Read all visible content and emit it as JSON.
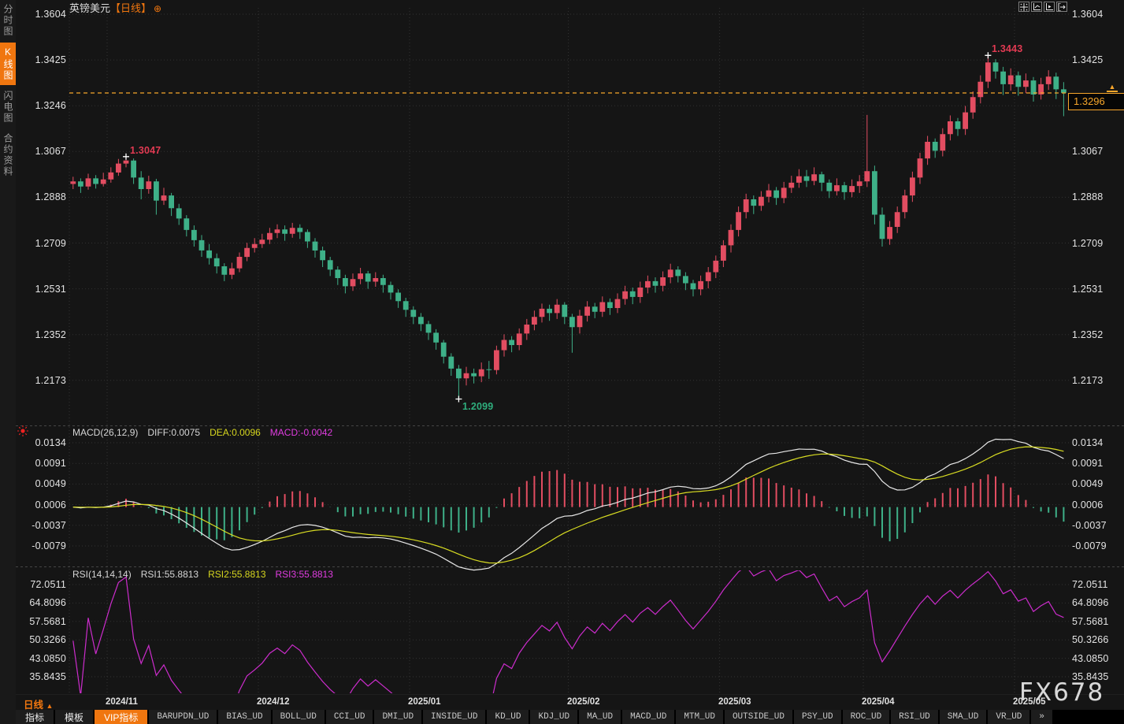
{
  "window": {
    "symbol": "英镑美元",
    "period_tag": "【日线】",
    "add_icon": "⊕"
  },
  "sidebar": {
    "tabs": [
      {
        "label": "分时图",
        "active": false
      },
      {
        "label": "K线图",
        "active": true
      },
      {
        "label": "闪电图",
        "active": false
      },
      {
        "label": "合约资料",
        "active": false
      }
    ]
  },
  "colors": {
    "up": "#e24d61",
    "down": "#3eb088",
    "accent": "#f0760f",
    "price_line": "#f7a62b",
    "diff_line": "#e8e8e8",
    "dea_line": "#d8dc22",
    "rsi_line": "#cc2ccc",
    "annotation_up": "#e13a52",
    "annotation_down": "#2fae7d",
    "grid": "#323232",
    "axis_text": "#e4e4e4"
  },
  "chart_data": {
    "type": "candlestick",
    "title": "英镑美元 日线 (GBP/USD Daily)",
    "y_axis_main": [
      "1.3604",
      "1.3425",
      "1.3246",
      "1.3067",
      "1.2888",
      "1.2709",
      "1.2531",
      "1.2352",
      "1.2173"
    ],
    "months": [
      {
        "label": "2024/11",
        "index": 5
      },
      {
        "label": "2024/12",
        "index": 25
      },
      {
        "label": "2025/01",
        "index": 45
      },
      {
        "label": "2025/02",
        "index": 66
      },
      {
        "label": "2025/03",
        "index": 86
      },
      {
        "label": "2025/04",
        "index": 105
      },
      {
        "label": "2025/05",
        "index": 125
      }
    ],
    "current_price": "1.3296",
    "annotations": [
      {
        "text": "1.3047",
        "candle_index": 7,
        "anchor": "high",
        "tone": "up"
      },
      {
        "text": "1.2099",
        "candle_index": 51,
        "anchor": "low",
        "tone": "down"
      },
      {
        "text": "1.3443",
        "candle_index": 121,
        "anchor": "high",
        "tone": "up"
      }
    ],
    "candles": [
      [
        1.294,
        1.2968,
        1.292,
        1.295
      ],
      [
        1.295,
        1.2962,
        1.2905,
        1.293
      ],
      [
        1.293,
        1.298,
        1.2918,
        1.2962
      ],
      [
        1.2962,
        1.2975,
        1.2922,
        1.294
      ],
      [
        1.294,
        1.2984,
        1.293,
        1.2958
      ],
      [
        1.2958,
        1.3005,
        1.2945,
        1.2985
      ],
      [
        1.2985,
        1.3038,
        1.2972,
        1.302
      ],
      [
        1.302,
        1.3047,
        1.3005,
        1.3032
      ],
      [
        1.3032,
        1.304,
        1.294,
        1.2965
      ],
      [
        1.2965,
        1.299,
        1.288,
        1.292
      ],
      [
        1.292,
        1.2972,
        1.2902,
        1.295
      ],
      [
        1.295,
        1.296,
        1.282,
        1.2875
      ],
      [
        1.2875,
        1.2925,
        1.2858,
        1.2895
      ],
      [
        1.2895,
        1.2905,
        1.2815,
        1.2845
      ],
      [
        1.2845,
        1.2862,
        1.278,
        1.2805
      ],
      [
        1.2805,
        1.2818,
        1.2735,
        1.276
      ],
      [
        1.276,
        1.2778,
        1.2695,
        1.272
      ],
      [
        1.272,
        1.274,
        1.2655,
        1.268
      ],
      [
        1.268,
        1.2705,
        1.2625,
        1.265
      ],
      [
        1.265,
        1.2668,
        1.259,
        1.2618
      ],
      [
        1.2618,
        1.263,
        1.256,
        1.2585
      ],
      [
        1.2585,
        1.2632,
        1.2568,
        1.261
      ],
      [
        1.261,
        1.2672,
        1.2595,
        1.2655
      ],
      [
        1.2655,
        1.271,
        1.2638,
        1.269
      ],
      [
        1.269,
        1.2728,
        1.2672,
        1.2705
      ],
      [
        1.2705,
        1.2745,
        1.269,
        1.2722
      ],
      [
        1.2722,
        1.2768,
        1.2705,
        1.2748
      ],
      [
        1.2748,
        1.2782,
        1.2728,
        1.2762
      ],
      [
        1.2762,
        1.2778,
        1.2718,
        1.2745
      ],
      [
        1.2745,
        1.2788,
        1.273,
        1.2768
      ],
      [
        1.2768,
        1.2782,
        1.2725,
        1.2752
      ],
      [
        1.2752,
        1.2762,
        1.269,
        1.2715
      ],
      [
        1.2715,
        1.2728,
        1.2652,
        1.268
      ],
      [
        1.268,
        1.2695,
        1.2615,
        1.2642
      ],
      [
        1.2642,
        1.2655,
        1.258,
        1.2605
      ],
      [
        1.2605,
        1.2618,
        1.2545,
        1.2572
      ],
      [
        1.2572,
        1.2585,
        1.2512,
        1.254
      ],
      [
        1.254,
        1.259,
        1.2522,
        1.2568
      ],
      [
        1.2568,
        1.2612,
        1.2548,
        1.259
      ],
      [
        1.259,
        1.26,
        1.253,
        1.2558
      ],
      [
        1.2558,
        1.2595,
        1.2538,
        1.2572
      ],
      [
        1.2572,
        1.2585,
        1.2515,
        1.2545
      ],
      [
        1.2545,
        1.2558,
        1.2488,
        1.2515
      ],
      [
        1.2515,
        1.2528,
        1.2455,
        1.2482
      ],
      [
        1.2482,
        1.2495,
        1.242,
        1.2448
      ],
      [
        1.2448,
        1.2462,
        1.2392,
        1.242
      ],
      [
        1.242,
        1.2435,
        1.2365,
        1.2392
      ],
      [
        1.2392,
        1.2405,
        1.233,
        1.2358
      ],
      [
        1.2358,
        1.2372,
        1.2292,
        1.232
      ],
      [
        1.232,
        1.233,
        1.2238,
        1.2265
      ],
      [
        1.2265,
        1.2278,
        1.219,
        1.2218
      ],
      [
        1.2218,
        1.2232,
        1.2099,
        1.218
      ],
      [
        1.218,
        1.2225,
        1.2152,
        1.22
      ],
      [
        1.22,
        1.2218,
        1.216,
        1.2188
      ],
      [
        1.2188,
        1.2242,
        1.2165,
        1.2215
      ],
      [
        1.2215,
        1.2248,
        1.2178,
        1.2212
      ],
      [
        1.2212,
        1.2308,
        1.2195,
        1.229
      ],
      [
        1.229,
        1.2352,
        1.2265,
        1.233
      ],
      [
        1.233,
        1.2345,
        1.2282,
        1.231
      ],
      [
        1.231,
        1.2375,
        1.229,
        1.2355
      ],
      [
        1.2355,
        1.2412,
        1.233,
        1.239
      ],
      [
        1.239,
        1.2445,
        1.2368,
        1.242
      ],
      [
        1.242,
        1.2472,
        1.2398,
        1.2452
      ],
      [
        1.2452,
        1.2468,
        1.2405,
        1.2435
      ],
      [
        1.2435,
        1.249,
        1.2412,
        1.2468
      ],
      [
        1.2468,
        1.2478,
        1.2392,
        1.242
      ],
      [
        1.242,
        1.2432,
        1.228,
        1.238
      ],
      [
        1.238,
        1.2448,
        1.2355,
        1.2425
      ],
      [
        1.2425,
        1.2482,
        1.2402,
        1.246
      ],
      [
        1.246,
        1.2475,
        1.2415,
        1.244
      ],
      [
        1.244,
        1.25,
        1.242,
        1.2478
      ],
      [
        1.2478,
        1.2492,
        1.2428,
        1.2455
      ],
      [
        1.2455,
        1.2512,
        1.2435,
        1.249
      ],
      [
        1.249,
        1.2542,
        1.2468,
        1.252
      ],
      [
        1.252,
        1.2535,
        1.247,
        1.2498
      ],
      [
        1.2498,
        1.2558,
        1.2475,
        1.2535
      ],
      [
        1.2535,
        1.2582,
        1.2512,
        1.256
      ],
      [
        1.256,
        1.2575,
        1.2515,
        1.2542
      ],
      [
        1.2542,
        1.2598,
        1.252,
        1.2575
      ],
      [
        1.2575,
        1.2628,
        1.2552,
        1.2605
      ],
      [
        1.2605,
        1.2618,
        1.2555,
        1.258
      ],
      [
        1.258,
        1.2595,
        1.2525,
        1.2552
      ],
      [
        1.2552,
        1.2565,
        1.25,
        1.2528
      ],
      [
        1.2528,
        1.2582,
        1.2505,
        1.256
      ],
      [
        1.256,
        1.2615,
        1.2532,
        1.2595
      ],
      [
        1.2595,
        1.266,
        1.2572,
        1.264
      ],
      [
        1.264,
        1.272,
        1.2615,
        1.27
      ],
      [
        1.27,
        1.2782,
        1.2672,
        1.276
      ],
      [
        1.276,
        1.2852,
        1.2735,
        1.283
      ],
      [
        1.283,
        1.2902,
        1.2805,
        1.288
      ],
      [
        1.288,
        1.2895,
        1.2822,
        1.2855
      ],
      [
        1.2855,
        1.2912,
        1.2835,
        1.289
      ],
      [
        1.289,
        1.294,
        1.2868,
        1.2915
      ],
      [
        1.2915,
        1.2928,
        1.2858,
        1.2885
      ],
      [
        1.2885,
        1.2948,
        1.2865,
        1.2925
      ],
      [
        1.2925,
        1.2972,
        1.2905,
        1.2945
      ],
      [
        1.2945,
        1.2998,
        1.2925,
        1.297
      ],
      [
        1.297,
        1.2995,
        1.2928,
        1.2952
      ],
      [
        1.2952,
        1.3005,
        1.2935,
        1.2978
      ],
      [
        1.2978,
        1.2988,
        1.2912,
        1.2945
      ],
      [
        1.2945,
        1.2958,
        1.2885,
        1.2912
      ],
      [
        1.2912,
        1.2962,
        1.2895,
        1.2935
      ],
      [
        1.2935,
        1.2948,
        1.2878,
        1.2908
      ],
      [
        1.2908,
        1.2958,
        1.2888,
        1.2932
      ],
      [
        1.2932,
        1.2975,
        1.2905,
        1.295
      ],
      [
        1.295,
        1.321,
        1.2928,
        1.299
      ],
      [
        1.299,
        1.3012,
        1.2782,
        1.282
      ],
      [
        1.282,
        1.2848,
        1.2695,
        1.2725
      ],
      [
        1.2725,
        1.2795,
        1.2702,
        1.2772
      ],
      [
        1.2772,
        1.2852,
        1.2748,
        1.283
      ],
      [
        1.283,
        1.2918,
        1.2805,
        1.2895
      ],
      [
        1.2895,
        1.2988,
        1.287,
        1.2965
      ],
      [
        1.2965,
        1.3062,
        1.294,
        1.304
      ],
      [
        1.304,
        1.3128,
        1.3015,
        1.3105
      ],
      [
        1.3105,
        1.3118,
        1.3042,
        1.307
      ],
      [
        1.307,
        1.3158,
        1.3048,
        1.3135
      ],
      [
        1.3135,
        1.3208,
        1.311,
        1.3185
      ],
      [
        1.3185,
        1.3198,
        1.3128,
        1.3155
      ],
      [
        1.3155,
        1.3245,
        1.3132,
        1.322
      ],
      [
        1.322,
        1.3302,
        1.3195,
        1.328
      ],
      [
        1.328,
        1.3365,
        1.3255,
        1.334
      ],
      [
        1.334,
        1.3443,
        1.3315,
        1.3415
      ],
      [
        1.3415,
        1.3428,
        1.3352,
        1.338
      ],
      [
        1.338,
        1.3398,
        1.3288,
        1.333
      ],
      [
        1.333,
        1.3392,
        1.3305,
        1.3365
      ],
      [
        1.3365,
        1.338,
        1.3285,
        1.332
      ],
      [
        1.332,
        1.3372,
        1.3295,
        1.3345
      ],
      [
        1.3345,
        1.3358,
        1.3262,
        1.329
      ],
      [
        1.329,
        1.3355,
        1.327,
        1.333
      ],
      [
        1.333,
        1.3385,
        1.3308,
        1.336
      ],
      [
        1.336,
        1.3375,
        1.3272,
        1.331
      ],
      [
        1.331,
        1.3338,
        1.3205,
        1.3296
      ]
    ],
    "macd": {
      "title": "MACD(26,12,9)",
      "diff_label": "DIFF:0.0075",
      "dea_label": "DEA:0.0096",
      "bar_label": "MACD:-0.0042",
      "params": {
        "slow": 26,
        "fast": 12,
        "signal": 9
      },
      "y_axis": [
        "0.0134",
        "0.0091",
        "0.0049",
        "0.0006",
        "-0.0037",
        "-0.0079"
      ]
    },
    "rsi": {
      "title": "RSI(14,14,14)",
      "rsi1_label": "RSI1:55.8813",
      "rsi2_label": "RSI2:55.8813",
      "rsi3_label": "RSI3:55.8813",
      "params": {
        "period": 14
      },
      "y_axis": [
        "72.0511",
        "64.8096",
        "57.5681",
        "50.3266",
        "43.0850",
        "35.8435"
      ]
    }
  },
  "bottom": {
    "period": "日线",
    "period_arrow": "▲",
    "toolbar": [
      {
        "label": "指标",
        "type": "cn",
        "active": false
      },
      {
        "label": "模板",
        "type": "cn",
        "active": false
      },
      {
        "label": "VIP指标",
        "type": "cn",
        "active": true
      },
      {
        "label": "BARUPDN_UD",
        "type": "en",
        "active": false
      },
      {
        "label": "BIAS_UD",
        "type": "en",
        "active": false
      },
      {
        "label": "BOLL_UD",
        "type": "en",
        "active": false
      },
      {
        "label": "CCI_UD",
        "type": "en",
        "active": false
      },
      {
        "label": "DMI_UD",
        "type": "en",
        "active": false
      },
      {
        "label": "INSIDE_UD",
        "type": "en",
        "active": false
      },
      {
        "label": "KD_UD",
        "type": "en",
        "active": false
      },
      {
        "label": "KDJ_UD",
        "type": "en",
        "active": false
      },
      {
        "label": "MA_UD",
        "type": "en",
        "active": false
      },
      {
        "label": "MACD_UD",
        "type": "en",
        "active": false
      },
      {
        "label": "MTM_UD",
        "type": "en",
        "active": false
      },
      {
        "label": "OUTSIDE_UD",
        "type": "en",
        "active": false
      },
      {
        "label": "PSY_UD",
        "type": "en",
        "active": false
      },
      {
        "label": "ROC_UD",
        "type": "en",
        "active": false
      },
      {
        "label": "RSI_UD",
        "type": "en",
        "active": false
      },
      {
        "label": "SMA_UD",
        "type": "en",
        "active": false
      },
      {
        "label": "VR_UD",
        "type": "en",
        "active": false
      },
      {
        "label": "»",
        "type": "more",
        "active": false
      }
    ]
  },
  "watermark": "FX678"
}
